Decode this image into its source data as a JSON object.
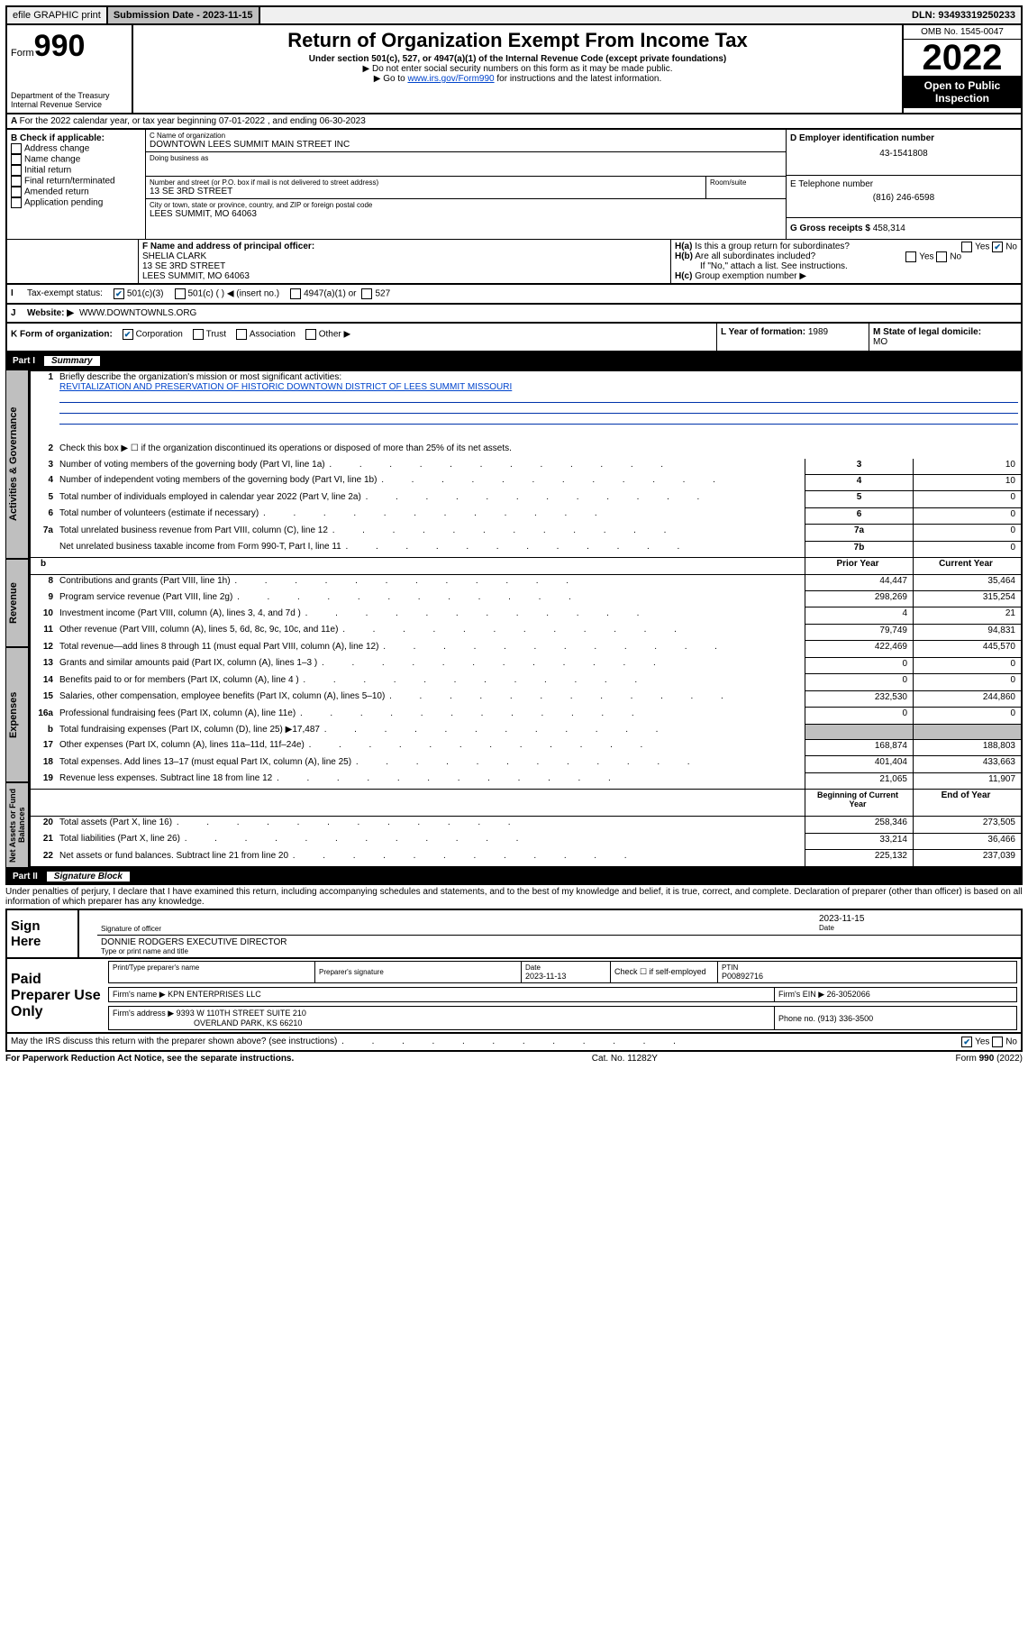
{
  "topbar": {
    "efile": "efile GRAPHIC print",
    "sub_label": "Submission Date - 2023-11-15",
    "dln": "DLN: 93493319250233"
  },
  "header": {
    "form_prefix": "Form",
    "form_number": "990",
    "dept": "Department of the Treasury",
    "irs": "Internal Revenue Service",
    "title": "Return of Organization Exempt From Income Tax",
    "subtitle": "Under section 501(c), 527, or 4947(a)(1) of the Internal Revenue Code (except private foundations)",
    "note1": "▶ Do not enter social security numbers on this form as it may be made public.",
    "note2_pre": "▶ Go to ",
    "note2_link": "www.irs.gov/Form990",
    "note2_post": " for instructions and the latest information.",
    "omb": "OMB No. 1545-0047",
    "year": "2022",
    "open": "Open to Public Inspection"
  },
  "a_line": "For the 2022 calendar year, or tax year beginning 07-01-2022    , and ending 06-30-2023",
  "b": {
    "label": "B Check if applicable:",
    "opts": [
      "Address change",
      "Name change",
      "Initial return",
      "Final return/terminated",
      "Amended return",
      "Application pending"
    ]
  },
  "c": {
    "name_label": "C Name of organization",
    "name": "DOWNTOWN LEES SUMMIT MAIN STREET INC",
    "dba_label": "Doing business as",
    "street_label": "Number and street (or P.O. box if mail is not delivered to street address)",
    "street": "13 SE 3RD STREET",
    "room_label": "Room/suite",
    "city_label": "City or town, state or province, country, and ZIP or foreign postal code",
    "city": "LEES SUMMIT, MO  64063"
  },
  "d": {
    "label": "D Employer identification number",
    "value": "43-1541808"
  },
  "e": {
    "label": "E Telephone number",
    "value": "(816) 246-6598"
  },
  "g": {
    "label": "G Gross receipts $",
    "value": "458,314"
  },
  "f": {
    "label": "F Name and address of principal officer:",
    "name": "SHELIA CLARK",
    "addr1": "13 SE 3RD STREET",
    "addr2": "LEES SUMMIT, MO  64063"
  },
  "h": {
    "a": "Is this a group return for subordinates?",
    "b": "Are all subordinates included?",
    "b_note": "If \"No,\" attach a list. See instructions.",
    "c": "Group exemption number ▶"
  },
  "i": {
    "label": "Tax-exempt status:",
    "c3": "501(c)(3)",
    "c": "501(c) (   ) ◀ (insert no.)",
    "a1": "4947(a)(1) or",
    "s527": "527"
  },
  "j": {
    "label": "Website: ▶",
    "value": "WWW.DOWNTOWNLS.ORG"
  },
  "k": {
    "label": "K Form of organization:",
    "corp": "Corporation",
    "trust": "Trust",
    "assoc": "Association",
    "other": "Other ▶"
  },
  "l": {
    "label": "L Year of formation:",
    "value": "1989"
  },
  "m": {
    "label": "M State of legal domicile:",
    "value": "MO"
  },
  "part1": {
    "header_part": "Part I",
    "header_title": "Summary",
    "q1_label": "Briefly describe the organization's mission or most significant activities:",
    "q1_val": "REVITALIZATION AND PRESERVATION OF HISTORIC DOWNTOWN DISTRICT OF LEES SUMMIT MISSOURI",
    "q2": "Check this box ▶ ☐  if the organization discontinued its operations or disposed of more than 25% of its net assets.",
    "rows_ag": [
      {
        "n": "3",
        "t": "Number of voting members of the governing body (Part VI, line 1a)",
        "box": "3",
        "v": "10"
      },
      {
        "n": "4",
        "t": "Number of independent voting members of the governing body (Part VI, line 1b)",
        "box": "4",
        "v": "10"
      },
      {
        "n": "5",
        "t": "Total number of individuals employed in calendar year 2022 (Part V, line 2a)",
        "box": "5",
        "v": "0"
      },
      {
        "n": "6",
        "t": "Total number of volunteers (estimate if necessary)",
        "box": "6",
        "v": "0"
      },
      {
        "n": "7a",
        "t": "Total unrelated business revenue from Part VIII, column (C), line 12",
        "box": "7a",
        "v": "0"
      },
      {
        "n": "",
        "t": "Net unrelated business taxable income from Form 990-T, Part I, line 11",
        "box": "7b",
        "v": "0"
      }
    ],
    "col_prior": "Prior Year",
    "col_curr": "Current Year",
    "rev": [
      {
        "n": "8",
        "t": "Contributions and grants (Part VIII, line 1h)",
        "p": "44,447",
        "c": "35,464"
      },
      {
        "n": "9",
        "t": "Program service revenue (Part VIII, line 2g)",
        "p": "298,269",
        "c": "315,254"
      },
      {
        "n": "10",
        "t": "Investment income (Part VIII, column (A), lines 3, 4, and 7d )",
        "p": "4",
        "c": "21"
      },
      {
        "n": "11",
        "t": "Other revenue (Part VIII, column (A), lines 5, 6d, 8c, 9c, 10c, and 11e)",
        "p": "79,749",
        "c": "94,831"
      },
      {
        "n": "12",
        "t": "Total revenue—add lines 8 through 11 (must equal Part VIII, column (A), line 12)",
        "p": "422,469",
        "c": "445,570"
      }
    ],
    "exp": [
      {
        "n": "13",
        "t": "Grants and similar amounts paid (Part IX, column (A), lines 1–3 )",
        "p": "0",
        "c": "0"
      },
      {
        "n": "14",
        "t": "Benefits paid to or for members (Part IX, column (A), line 4 )",
        "p": "0",
        "c": "0"
      },
      {
        "n": "15",
        "t": "Salaries, other compensation, employee benefits (Part IX, column (A), lines 5–10)",
        "p": "232,530",
        "c": "244,860"
      },
      {
        "n": "16a",
        "t": "Professional fundraising fees (Part IX, column (A), line 11e)",
        "p": "0",
        "c": "0"
      },
      {
        "n": "b",
        "t": "Total fundraising expenses (Part IX, column (D), line 25) ▶17,487",
        "p": "",
        "c": "",
        "grey": true
      },
      {
        "n": "17",
        "t": "Other expenses (Part IX, column (A), lines 11a–11d, 11f–24e)",
        "p": "168,874",
        "c": "188,803"
      },
      {
        "n": "18",
        "t": "Total expenses. Add lines 13–17 (must equal Part IX, column (A), line 25)",
        "p": "401,404",
        "c": "433,663"
      },
      {
        "n": "19",
        "t": "Revenue less expenses. Subtract line 18 from line 12",
        "p": "21,065",
        "c": "11,907"
      }
    ],
    "col_begin": "Beginning of Current Year",
    "col_end": "End of Year",
    "net": [
      {
        "n": "20",
        "t": "Total assets (Part X, line 16)",
        "p": "258,346",
        "c": "273,505"
      },
      {
        "n": "21",
        "t": "Total liabilities (Part X, line 26)",
        "p": "33,214",
        "c": "36,466"
      },
      {
        "n": "22",
        "t": "Net assets or fund balances. Subtract line 21 from line 20",
        "p": "225,132",
        "c": "237,039"
      }
    ],
    "vlabels": {
      "ag": "Activities & Governance",
      "rev": "Revenue",
      "exp": "Expenses",
      "net": "Net Assets or Fund Balances"
    }
  },
  "part2": {
    "header_part": "Part II",
    "header_title": "Signature Block",
    "decl": "Under penalties of perjury, I declare that I have examined this return, including accompanying schedules and statements, and to the best of my knowledge and belief, it is true, correct, and complete. Declaration of preparer (other than officer) is based on all information of which preparer has any knowledge.",
    "sign_here": "Sign Here",
    "sig_officer": "Signature of officer",
    "sig_date": "2023-11-15",
    "date_lbl": "Date",
    "officer_name": "DONNIE RODGERS EXECUTIVE DIRECTOR",
    "officer_sub": "Type or print name and title",
    "paid": "Paid Preparer Use Only",
    "p_name_lbl": "Print/Type preparer's name",
    "p_sig_lbl": "Preparer's signature",
    "p_date_lbl": "Date",
    "p_date": "2023-11-13",
    "p_check": "Check ☐ if self-employed",
    "ptin_lbl": "PTIN",
    "ptin": "P00892716",
    "firm_name_lbl": "Firm's name   ▶",
    "firm_name": "KPN ENTERPRISES LLC",
    "firm_ein_lbl": "Firm's EIN ▶",
    "firm_ein": "26-3052066",
    "firm_addr_lbl": "Firm's address ▶",
    "firm_addr1": "9393 W 110TH STREET SUITE 210",
    "firm_addr2": "OVERLAND PARK, KS  66210",
    "phone_lbl": "Phone no.",
    "phone": "(913) 336-3500",
    "may_irs": "May the IRS discuss this return with the preparer shown above? (see instructions)"
  },
  "footer": {
    "left": "For Paperwork Reduction Act Notice, see the separate instructions.",
    "mid": "Cat. No. 11282Y",
    "right": "Form 990 (2022)"
  }
}
